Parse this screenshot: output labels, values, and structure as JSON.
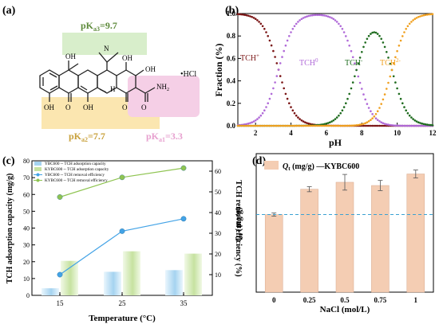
{
  "panels": {
    "a": "(a)",
    "b": "(b)",
    "c": "(c)",
    "d": "(d)"
  },
  "structure": {
    "pka1": "pK",
    "pka1_sub": "a1",
    "pka1_val": "=3.3",
    "pka2": "pK",
    "pka2_sub": "a2",
    "pka2_val": "=7.7",
    "pka3": "pK",
    "pka3_sub": "a3",
    "pka3_val": "=9.7",
    "hcl": "•HCl",
    "atom_oh": "OH",
    "atom_nh2": "NH",
    "atom_nh2_sub": "2",
    "atom_h": "H",
    "atom_n": "N",
    "colors": {
      "pka1_box": "#f5cfe6",
      "pka2_box": "#fbe6b0",
      "pka3_box": "#d8eecb",
      "pka1_text": "#e7a0cf",
      "pka2_text": "#c8a03a",
      "pka3_text": "#5d8a3a"
    }
  },
  "colors": {
    "b_tch_plus": "#7a1414",
    "b_tch0": "#b06ad8",
    "b_tch_minus": "#1e6b1e",
    "b_tch_2minus": "#f0a020",
    "c_ybc_bar": "#a5d3f0",
    "c_kybc_bar": "#c6e2a0",
    "c_ybc_line": "#43a3e6",
    "c_kybc_line": "#8fc451",
    "d_bar": "#f4cdb3",
    "d_bar_edge": "#d7a88c",
    "d_ref": "#3aa1d2"
  },
  "chart_data": [
    {
      "panel": "b",
      "type": "line",
      "xlabel": "pH",
      "ylabel": "Fraction (%)",
      "xlim": [
        1,
        12
      ],
      "ylim": [
        0,
        1.0
      ],
      "xticks": [
        "2",
        "4",
        "6",
        "8",
        "10",
        "12"
      ],
      "yticks": [
        "0.0",
        "0.2",
        "0.4",
        "0.6",
        "0.8",
        "1.0"
      ],
      "pka": [
        3.3,
        7.7,
        9.7
      ],
      "series": [
        {
          "name": "TCH",
          "sup": "+"
        },
        {
          "name": "TCH",
          "sup": "0"
        },
        {
          "name": "TCH",
          "sup": "-"
        },
        {
          "name": "TCH",
          "sup": "2-"
        }
      ]
    },
    {
      "panel": "c",
      "type": "bar",
      "xlabel": "Temperature (°C)",
      "ylabel": "TCH adsorption capacity (mg/g)",
      "y2label": "TCH removal efficiency (%)",
      "categories": [
        "15",
        "25",
        "35"
      ],
      "ylim": [
        0,
        80
      ],
      "y2lim": [
        0,
        65
      ],
      "yticks": [
        "0",
        "10",
        "20",
        "30",
        "40",
        "50",
        "60",
        "70",
        "80"
      ],
      "y2ticks": [
        "10",
        "20",
        "30",
        "40",
        "50",
        "60"
      ],
      "legend": [
        "YBC600 -- TCH adsorption capacity",
        "KYBC600 -- TCH adsorption capacity",
        "YBC600 -- TCH removal efficiency",
        "KYBC600 -- TCH removal efficiency"
      ],
      "series": [
        {
          "name": "YBC600 -- TCH adsorption capacity",
          "values": [
            4.2,
            14.0,
            15.0
          ]
        },
        {
          "name": "KYBC600 -- TCH adsorption capacity",
          "values": [
            20.5,
            26.2,
            24.8
          ]
        },
        {
          "name": "YBC600 -- TCH removal efficiency",
          "values": [
            10.0,
            31.0,
            37.0
          ]
        },
        {
          "name": "KYBC600 -- TCH removal efficiency",
          "values": [
            47.5,
            57.0,
            61.5
          ]
        }
      ]
    },
    {
      "panel": "d",
      "type": "bar",
      "xlabel": "NaCl (mol/L)",
      "ylabel": "Q",
      "ylabel_sub": "t",
      "ylabel_rest": " (mg/g)",
      "legend_q": "Q",
      "legend_sub": "t",
      "legend_rest": " (mg/g) —KYBC600",
      "categories": [
        "0",
        "0.25",
        "0.5",
        "0.75",
        "1"
      ],
      "values": [
        16.8,
        22.3,
        23.8,
        23.1,
        25.6
      ],
      "errors": [
        0.35,
        0.55,
        1.7,
        1.1,
        0.85
      ],
      "reference": 16.8,
      "ylim": [
        0,
        30
      ]
    }
  ]
}
